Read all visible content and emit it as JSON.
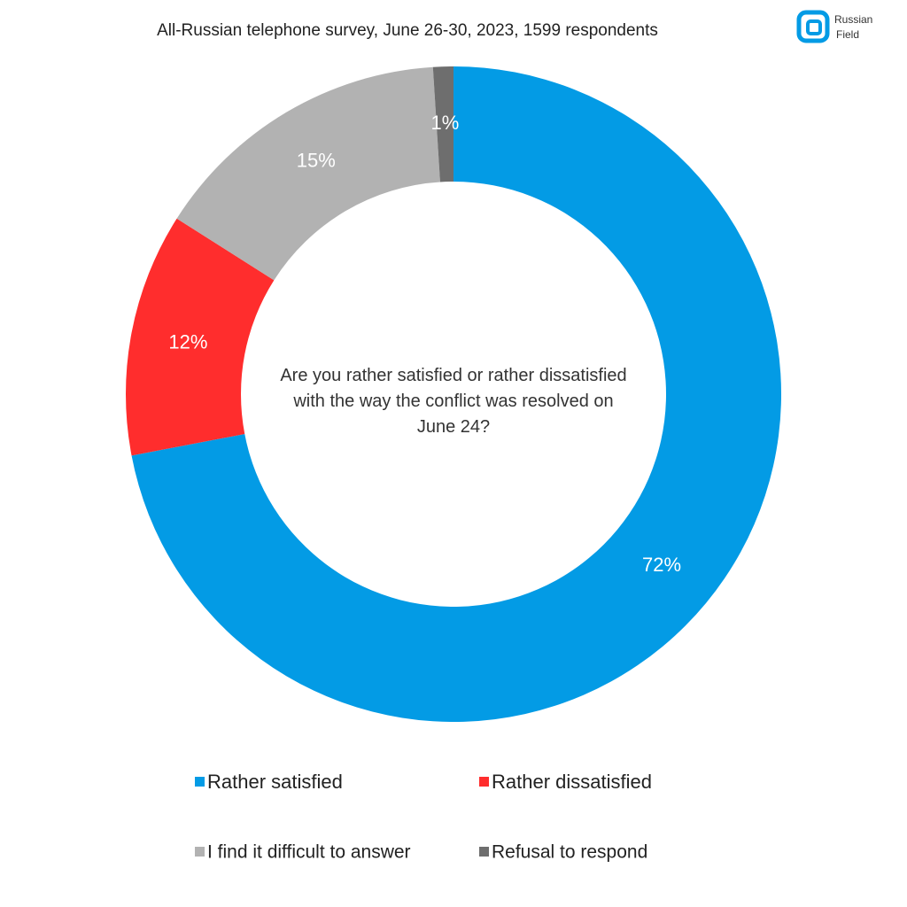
{
  "chart_data": {
    "type": "donut",
    "title": "All-Russian telephone survey, June 26-30, 2023, 1599 respondents",
    "center_text": "Are you rather satisfied or rather dissatisfied with the way the conflict was resolved on June 24?",
    "categories": [
      "Rather satisfied",
      "Rather dissatisfied",
      "I find it difficult to answer",
      "Refusal to respond"
    ],
    "values": [
      72,
      12,
      15,
      1
    ],
    "value_labels": [
      "72%",
      "12%",
      "15%",
      "1%"
    ],
    "colors": [
      "#039be5",
      "#ff2d2d",
      "#b2b2b2",
      "#6e6e6e"
    ]
  },
  "logo": {
    "lines": [
      "Russian",
      "Field"
    ]
  }
}
